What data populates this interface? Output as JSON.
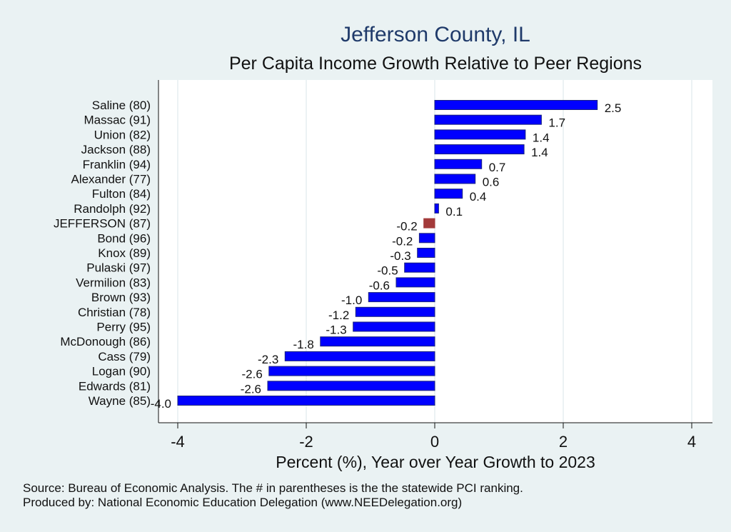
{
  "chart_data": {
    "type": "bar",
    "orientation": "horizontal",
    "title": "Jefferson County, IL",
    "subtitle": "Per Capita Income Growth Relative to Peer Regions",
    "xlabel": "Percent (%), Year over Year Growth to 2023",
    "xlim": [
      -4,
      4
    ],
    "xticks": [
      -4,
      -2,
      0,
      2,
      4
    ],
    "grid": true,
    "categories": [
      "Saline (80)",
      "Massac (91)",
      "Union (82)",
      "Jackson (88)",
      "Franklin (94)",
      "Alexander (77)",
      "Fulton (84)",
      "Randolph (92)",
      "JEFFERSON (87)",
      "Bond (96)",
      "Knox (89)",
      "Pulaski (97)",
      "Vermilion (83)",
      "Brown (93)",
      "Christian (78)",
      "Perry (95)",
      "McDonough (86)",
      "Cass (79)",
      "Logan (90)",
      "Edwards (81)",
      "Wayne (85)"
    ],
    "values": [
      2.53,
      1.66,
      1.41,
      1.39,
      0.73,
      0.63,
      0.43,
      0.06,
      -0.17,
      -0.24,
      -0.27,
      -0.47,
      -0.6,
      -1.03,
      -1.23,
      -1.27,
      -1.78,
      -2.33,
      -2.58,
      -2.6,
      -4.0
    ],
    "value_labels": [
      "2.5",
      "1.7",
      "1.4",
      "1.4",
      "0.7",
      "0.6",
      "0.4",
      "0.1",
      "-0.2",
      "-0.2",
      "-0.3",
      "-0.5",
      "-0.6",
      "-1.0",
      "-1.2",
      "-1.3",
      "-1.8",
      "-2.3",
      "-2.6",
      "-2.6",
      "-4.0"
    ],
    "highlight": "JEFFERSON (87)",
    "colors": {
      "bar": "#0000ff",
      "bar_edge": "#1a237e",
      "highlight": "#a33a3a",
      "plot_bg": "#ffffff",
      "grid": "#e6eef0"
    }
  },
  "footer": {
    "source": "Source: Bureau of Economic Analysis. The # in parentheses is the the statewide PCI ranking.",
    "producer": "Produced by: National Economic Education Delegation (www.NEEDelegation.org)"
  }
}
